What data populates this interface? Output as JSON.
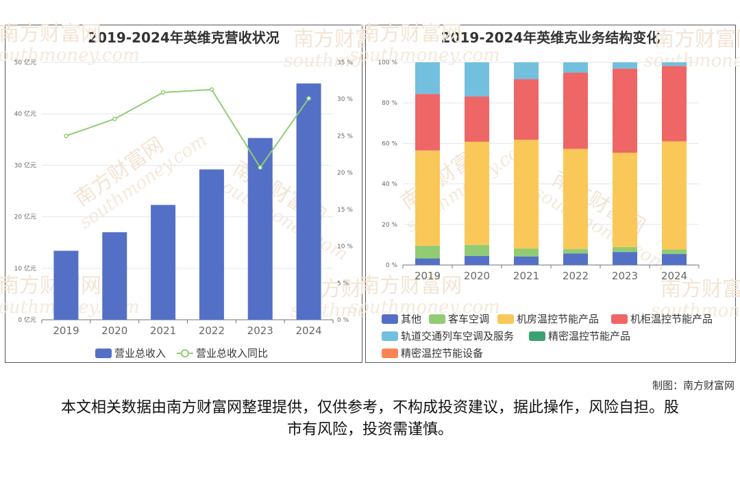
{
  "credit": "制图：南方财富网",
  "disclaimer": "本文相关数据由南方财富网整理提供，仅供参考，不构成投资建议，据此操作，风险自担。股市有风险，投资需谨慎。",
  "watermark": {
    "cn": "南方财富网",
    "en": "southmoney.com"
  },
  "chart_data": [
    {
      "type": "bar",
      "title": "2019-2024年英维克营收状况",
      "categories": [
        "2019",
        "2020",
        "2021",
        "2022",
        "2023",
        "2024"
      ],
      "series": [
        {
          "name": "营业总收入",
          "type": "bar",
          "axis": "left",
          "color": "#5470c6",
          "values": [
            13.4,
            17.0,
            22.3,
            29.2,
            35.3,
            45.9
          ]
        },
        {
          "name": "营业总收入同比",
          "type": "line",
          "axis": "right",
          "color": "#91cc75",
          "values": [
            25.0,
            27.3,
            30.9,
            31.3,
            20.7,
            30.1
          ]
        }
      ],
      "y_left": {
        "ticks": [
          "0 亿元",
          "10 亿元",
          "20 亿元",
          "30 亿元",
          "40 亿元",
          "50 亿元"
        ],
        "min": 0,
        "max": 50
      },
      "y_right": {
        "ticks": [
          "0 %",
          "5 %",
          "10 %",
          "15 %",
          "20 %",
          "25 %",
          "30 %",
          "35 %"
        ],
        "min": 0,
        "max": 35
      },
      "legend": "bottom"
    },
    {
      "type": "bar",
      "stacked": true,
      "title": "2019-2024年英维克业务结构变化",
      "categories": [
        "2019",
        "2020",
        "2021",
        "2022",
        "2023",
        "2024"
      ],
      "series": [
        {
          "name": "其他",
          "color": "#5470c6",
          "values": [
            3.2,
            4.5,
            4.2,
            5.7,
            6.4,
            5.4
          ]
        },
        {
          "name": "客车空调",
          "color": "#91cc75",
          "values": [
            6.3,
            5.4,
            3.9,
            2.2,
            2.4,
            2.2
          ]
        },
        {
          "name": "机房温控节能产品",
          "color": "#fac858",
          "values": [
            47.0,
            50.9,
            53.7,
            49.4,
            46.6,
            53.4
          ]
        },
        {
          "name": "机柜温控节能产品",
          "color": "#ee6666",
          "values": [
            27.9,
            22.3,
            29.9,
            37.6,
            41.5,
            37.2
          ]
        },
        {
          "name": "轨道交通列车空调及服务",
          "color": "#73c0de",
          "values": [
            15.6,
            16.9,
            8.3,
            5.1,
            3.1,
            1.8
          ]
        },
        {
          "name": "精密温控节能产品",
          "color": "#3ba272",
          "values": [
            0,
            0,
            0,
            0,
            0,
            0
          ]
        },
        {
          "name": "精密温控节能设备",
          "color": "#fc8452",
          "values": [
            0,
            0,
            0,
            0,
            0,
            0
          ]
        }
      ],
      "y": {
        "ticks": [
          "0 %",
          "20 %",
          "40 %",
          "60 %",
          "80 %",
          "100 %"
        ],
        "min": 0,
        "max": 100
      },
      "legend": "bottom"
    }
  ]
}
